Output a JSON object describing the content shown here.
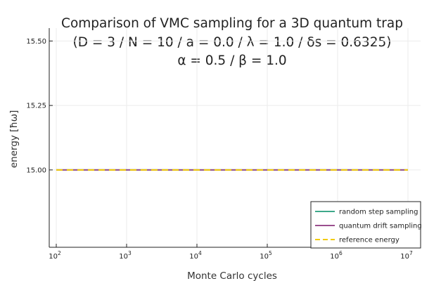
{
  "chart_data": {
    "type": "line",
    "title_lines": [
      "Comparison of VMC sampling for a 3D quantum trap",
      "(D = 3 / N = 10 / a = 0.0 / λ = 1.0 / δs = 0.6325)",
      "α = 0.5 / β = 1.0"
    ],
    "xlabel": "Monte Carlo cycles",
    "ylabel": "energy [ħω]",
    "x_scale": "log10",
    "xlim": [
      100,
      10000000
    ],
    "ylim": [
      14.7,
      15.55
    ],
    "x_ticks": [
      {
        "value": 100,
        "base": "10",
        "exp": "2"
      },
      {
        "value": 1000,
        "base": "10",
        "exp": "3"
      },
      {
        "value": 10000,
        "base": "10",
        "exp": "4"
      },
      {
        "value": 100000,
        "base": "10",
        "exp": "5"
      },
      {
        "value": 1000000,
        "base": "10",
        "exp": "6"
      },
      {
        "value": 10000000,
        "base": "10",
        "exp": "7"
      }
    ],
    "y_ticks": [
      {
        "value": 15.0,
        "label": "15.00"
      },
      {
        "value": 15.25,
        "label": "15.25"
      },
      {
        "value": 15.5,
        "label": "15.50"
      }
    ],
    "grid": true,
    "legend_position": "bottom-right",
    "series": [
      {
        "name": "random step sampling",
        "color": "#3da88a",
        "style": "solid",
        "x": [
          100,
          1000,
          10000,
          100000,
          1000000,
          10000000
        ],
        "y": [
          15.0,
          15.0,
          15.0,
          15.0,
          15.0,
          15.0
        ]
      },
      {
        "name": "quantum drift sampling",
        "color": "#9b4f8e",
        "style": "solid",
        "x": [
          100,
          1000,
          10000,
          100000,
          1000000,
          10000000
        ],
        "y": [
          15.0,
          15.0,
          15.0,
          15.0,
          15.0,
          15.0
        ]
      },
      {
        "name": "reference energy",
        "color": "#f2cb05",
        "style": "dashed",
        "x": [
          100,
          10000000
        ],
        "y": [
          15.0,
          15.0
        ]
      }
    ]
  }
}
